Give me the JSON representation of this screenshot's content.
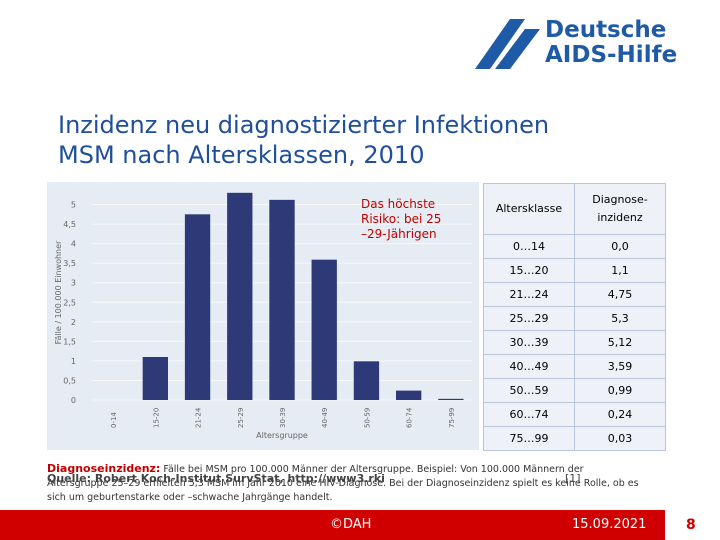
{
  "logo": {
    "line1": "Deutsche",
    "line2": "AIDS-Hilfe"
  },
  "title": {
    "line1": "Inzidenz neu diagnostizierter Infektionen",
    "line2": "MSM nach Altersklassen, 2010"
  },
  "chart_data": {
    "type": "bar",
    "y_label": "Fälle / 100.000 Einwohner",
    "x_label": "Altersgruppe",
    "annotation": "Das höchste Risiko: bei 25 –29-Jährigen",
    "categories": [
      "0-14",
      "15-20",
      "21-24",
      "25-29",
      "30-39",
      "40-49",
      "50-59",
      "60-74",
      "75-99"
    ],
    "values": [
      0,
      1.1,
      4.75,
      5.3,
      5.12,
      3.59,
      0.99,
      0.24,
      0.03
    ],
    "color": "#2e3a78",
    "ylim": [
      0,
      5.5
    ],
    "yticks": [
      0,
      {
        "value": 0.5,
        "label": "0,5"
      },
      1,
      {
        "value": 1.5,
        "label": "1,5"
      },
      2,
      {
        "value": 2.5,
        "label": "2,5"
      },
      3,
      {
        "value": 3.5,
        "label": "3,5"
      },
      4,
      {
        "value": 4.5,
        "label": "4,5"
      },
      5
    ],
    "grid": true
  },
  "table": {
    "header": [
      "Altersklasse",
      "Diagnose-inzidenz"
    ],
    "rows": [
      [
        "0…14",
        "0,0"
      ],
      [
        "15…20",
        "1,1"
      ],
      [
        "21…24",
        "4,75"
      ],
      [
        "25…29",
        "5,3"
      ],
      [
        "30…39",
        "5,12"
      ],
      [
        "40…49",
        "3,59"
      ],
      [
        "50…59",
        "0,99"
      ],
      [
        "60…74",
        "0,24"
      ],
      [
        "75…99",
        "0,03"
      ]
    ]
  },
  "note": {
    "label": "Diagnoseinzidenz:",
    "text": "Fälle bei MSM pro 100.000 Männer der Altersgruppe. Beispiel: Von 100.000 Männern der Altersgruppe 25–29 erhielten 5,3 MSM im Jahr 2010 eine HIV-Diagnose. Bei der Diagnoseinzidenz spielt es keine Rolle, ob es sich um geburtenstarke oder –schwache Jahrgänge handelt.",
    "source": "Quelle: Robert Koch-Institut SurvStat, http://www3.rki",
    "ref": "[1]"
  },
  "footer": {
    "copyright": "©DAH",
    "date": "15.09.2021",
    "page": "8"
  }
}
